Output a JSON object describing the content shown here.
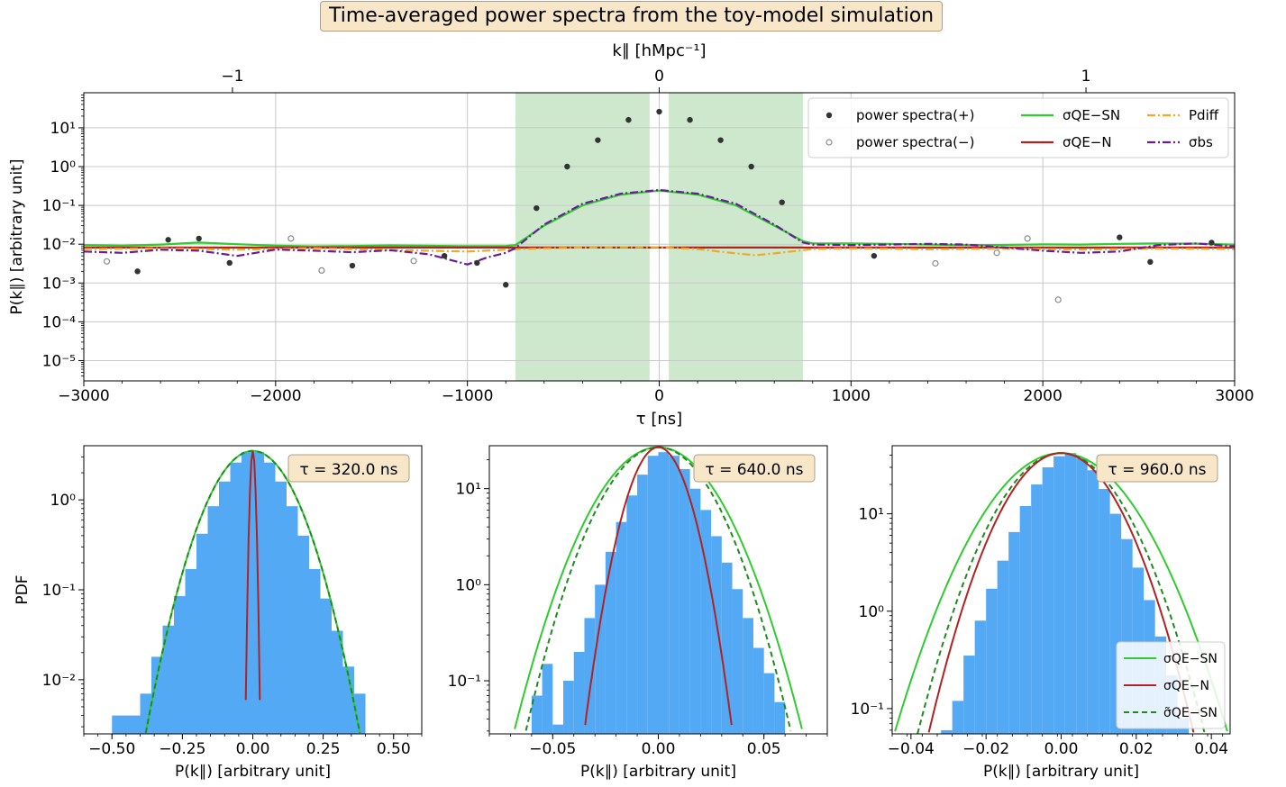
{
  "title": "Time-averaged power spectra from the toy-model simulation",
  "colors": {
    "ps_plus": "#333333",
    "ps_minus": "#8a8a8a",
    "sigma_qe_sn": "#2ecc2e",
    "sigma_qe_n": "#b22222",
    "p_diff": "#f5a623",
    "sigma_bs": "#6a1b9a",
    "sigma_qe_sn_tilde": "#1f8a1f",
    "histogram": "#53a9f4",
    "shade": "#cde8cd",
    "label_box": "#f8e6c8"
  },
  "chart_data": [
    {
      "type": "scatter",
      "panel": "top",
      "xlabel": "τ [ns]",
      "xlabel_top": "k∥ [hMpc⁻¹]",
      "ylabel": "P(k∥) [arbitrary unit]",
      "xlim": [
        -3000,
        3000
      ],
      "ylim": [
        3e-06,
        80
      ],
      "y_scale": "log",
      "grid": true,
      "legend_position": "top-right",
      "x_ticks": [
        -3000,
        -2000,
        -1000,
        0,
        1000,
        2000,
        3000
      ],
      "x_tick_labels": [
        "−3000",
        "−2000",
        "−1000",
        "0",
        "1000",
        "2000",
        "3000"
      ],
      "top_ticks": [
        -2225,
        0,
        2225
      ],
      "top_tick_labels": [
        "−1",
        "0",
        "1"
      ],
      "y_ticks": [
        1e-05,
        0.0001,
        0.001,
        0.01,
        0.1,
        1,
        10
      ],
      "y_tick_labels": [
        "10⁻⁵",
        "10⁻⁴",
        "10⁻³",
        "10⁻²",
        "10⁻¹",
        "10⁰",
        "10¹"
      ],
      "shaded_regions": [
        [
          -750,
          -50
        ],
        [
          50,
          750
        ]
      ],
      "legend": [
        {
          "key": "ps_plus",
          "label": "power spectra(+)"
        },
        {
          "key": "ps_minus",
          "label": "power spectra(−)"
        },
        {
          "key": "sigma_qe_sn",
          "label": "σQE−SN"
        },
        {
          "key": "sigma_qe_n",
          "label": "σQE−N"
        },
        {
          "key": "p_diff",
          "label": "Pdiff"
        },
        {
          "key": "sigma_bs",
          "label": "σbs"
        }
      ],
      "points_plus": [
        [
          -2720,
          0.002
        ],
        [
          -2560,
          0.013
        ],
        [
          -2400,
          0.014
        ],
        [
          -2240,
          0.0033
        ],
        [
          -1600,
          0.0028
        ],
        [
          -1120,
          0.005
        ],
        [
          -950,
          0.0033
        ],
        [
          -800,
          0.0009
        ],
        [
          -640,
          0.085
        ],
        [
          -480,
          1.0
        ],
        [
          -320,
          4.8
        ],
        [
          -160,
          16.0
        ],
        [
          0,
          26.0
        ],
        [
          160,
          16.0
        ],
        [
          320,
          4.8
        ],
        [
          480,
          1.0
        ],
        [
          640,
          0.12
        ],
        [
          1120,
          0.005
        ],
        [
          2400,
          0.015
        ],
        [
          2560,
          0.0035
        ],
        [
          2880,
          0.011
        ]
      ],
      "points_minus": [
        [
          -2880,
          0.0036
        ],
        [
          -1920,
          0.014
        ],
        [
          -1760,
          0.0021
        ],
        [
          -1280,
          0.0037
        ],
        [
          1440,
          0.0032
        ],
        [
          1760,
          0.006
        ],
        [
          1920,
          0.014
        ],
        [
          2080,
          0.00037
        ]
      ],
      "series": [
        {
          "key": "sigma_qe_sn",
          "style": "solid",
          "x": [
            -3000,
            -2800,
            -2600,
            -2400,
            -2200,
            -2000,
            -1800,
            -1600,
            -1400,
            -1200,
            -1000,
            -800,
            -750,
            -600,
            -400,
            -200,
            0,
            200,
            400,
            600,
            750,
            800,
            1000,
            1200,
            1400,
            1600,
            1800,
            2000,
            2200,
            2400,
            2600,
            2800,
            3000
          ],
          "y": [
            0.0095,
            0.0092,
            0.0098,
            0.011,
            0.01,
            0.0092,
            0.0088,
            0.009,
            0.0093,
            0.0091,
            0.0089,
            0.009,
            0.0095,
            0.03,
            0.1,
            0.19,
            0.24,
            0.19,
            0.1,
            0.03,
            0.012,
            0.0105,
            0.0105,
            0.0102,
            0.0098,
            0.0095,
            0.0096,
            0.0099,
            0.0098,
            0.0102,
            0.0105,
            0.0103,
            0.0098
          ]
        },
        {
          "key": "sigma_qe_n",
          "style": "solid",
          "x": [
            -3000,
            -1500,
            0,
            1500,
            3000
          ],
          "y": [
            0.0082,
            0.0082,
            0.0082,
            0.0082,
            0.0082
          ]
        },
        {
          "key": "p_diff",
          "style": "dashdot",
          "x": [
            -3000,
            -2600,
            -2200,
            -1800,
            -1400,
            -1000,
            -800,
            -600,
            -400,
            -200,
            0,
            200,
            400,
            500,
            600,
            800,
            1000,
            1400,
            1800,
            2200,
            2600,
            3000
          ],
          "y": [
            0.0075,
            0.0078,
            0.0072,
            0.0079,
            0.0071,
            0.0065,
            0.0072,
            0.0078,
            0.0082,
            0.0083,
            0.0083,
            0.0075,
            0.0058,
            0.0052,
            0.0058,
            0.0075,
            0.0078,
            0.0074,
            0.0077,
            0.0073,
            0.0077,
            0.0075
          ]
        },
        {
          "key": "sigma_bs",
          "style": "dashdot",
          "x": [
            -3000,
            -2800,
            -2600,
            -2400,
            -2200,
            -2000,
            -1800,
            -1600,
            -1400,
            -1200,
            -1000,
            -900,
            -800,
            -750,
            -600,
            -400,
            -200,
            0,
            200,
            400,
            600,
            750,
            800,
            1000,
            1200,
            1400,
            1600,
            1800,
            2000,
            2200,
            2400,
            2600,
            2800,
            3000
          ],
          "y": [
            0.0065,
            0.006,
            0.0072,
            0.0068,
            0.005,
            0.0073,
            0.0068,
            0.0062,
            0.007,
            0.0055,
            0.003,
            0.0045,
            0.006,
            0.008,
            0.032,
            0.11,
            0.2,
            0.25,
            0.2,
            0.11,
            0.032,
            0.011,
            0.0098,
            0.0095,
            0.0098,
            0.0102,
            0.0098,
            0.0082,
            0.0068,
            0.006,
            0.0065,
            0.0095,
            0.0105,
            0.0088
          ]
        }
      ]
    },
    {
      "type": "bar",
      "panel": "bottom-left",
      "annotation": "τ = 320.0 ns",
      "xlabel": "P(k∥) [arbitrary unit]",
      "ylabel": "PDF",
      "xlim": [
        -0.6,
        0.6
      ],
      "ylim": [
        0.0025,
        4
      ],
      "y_scale": "log",
      "x_ticks": [
        -0.5,
        -0.25,
        0.0,
        0.25,
        0.5
      ],
      "x_tick_labels": [
        "−0.50",
        "−0.25",
        "0.00",
        "0.25",
        "0.50"
      ],
      "y_ticks": [
        0.01,
        0.1,
        1
      ],
      "y_tick_labels": [
        "10⁻²",
        "10⁻¹",
        "10⁰"
      ],
      "bin_edges": [
        -0.5,
        -0.4,
        -0.36,
        -0.32,
        -0.28,
        -0.24,
        -0.2,
        -0.16,
        -0.12,
        -0.08,
        -0.04,
        0.0,
        0.04,
        0.08,
        0.12,
        0.16,
        0.2,
        0.24,
        0.28,
        0.32,
        0.36,
        0.4
      ],
      "counts": [
        0.004,
        0.007,
        0.018,
        0.04,
        0.085,
        0.17,
        0.42,
        0.85,
        1.6,
        2.6,
        3.4,
        3.4,
        2.6,
        1.6,
        0.85,
        0.4,
        0.17,
        0.08,
        0.035,
        0.014,
        0.007
      ],
      "gaussians": [
        {
          "key": "sigma_qe_sn",
          "style": "solid",
          "sigma": 0.1,
          "peak": 3.5
        },
        {
          "key": "sigma_qe_sn_tilde",
          "style": "dashed",
          "sigma": 0.1,
          "peak": 3.5
        },
        {
          "key": "sigma_qe_n",
          "style": "solid",
          "sigma": 0.007,
          "peak": 3.5
        }
      ]
    },
    {
      "type": "bar",
      "panel": "bottom-middle",
      "annotation": "τ = 640.0 ns",
      "xlabel": "P(k∥) [arbitrary unit]",
      "xlim": [
        -0.08,
        0.08
      ],
      "ylim": [
        0.028,
        28
      ],
      "y_scale": "log",
      "x_ticks": [
        -0.05,
        0.0,
        0.05
      ],
      "x_tick_labels": [
        "−0.05",
        "0.00",
        "0.05"
      ],
      "y_ticks": [
        0.1,
        1,
        10
      ],
      "y_tick_labels": [
        "10⁻¹",
        "10⁰",
        "10¹"
      ],
      "bin_edges": [
        -0.06,
        -0.055,
        -0.05,
        -0.045,
        -0.04,
        -0.035,
        -0.03,
        -0.025,
        -0.02,
        -0.015,
        -0.01,
        -0.005,
        0.0,
        0.005,
        0.01,
        0.015,
        0.02,
        0.025,
        0.03,
        0.035,
        0.04,
        0.045,
        0.05,
        0.055,
        0.06
      ],
      "counts": [
        0.07,
        0.15,
        0.035,
        0.1,
        0.2,
        0.45,
        1.0,
        2.2,
        4.5,
        8.5,
        14.0,
        22.0,
        24.0,
        22.0,
        16.0,
        10.0,
        6.0,
        3.2,
        1.7,
        0.9,
        0.45,
        0.22,
        0.12,
        0.06
      ],
      "gaussians": [
        {
          "key": "sigma_qe_sn",
          "style": "solid",
          "sigma": 0.0185,
          "peak": 27
        },
        {
          "key": "sigma_qe_sn_tilde",
          "style": "dashed",
          "sigma": 0.017,
          "peak": 27
        },
        {
          "key": "sigma_qe_n",
          "style": "solid",
          "sigma": 0.0095,
          "peak": 27
        }
      ]
    },
    {
      "type": "bar",
      "panel": "bottom-right",
      "annotation": "τ = 960.0 ns",
      "xlabel": "P(k∥) [arbitrary unit]",
      "xlim": [
        -0.045,
        0.045
      ],
      "ylim": [
        0.055,
        50
      ],
      "y_scale": "log",
      "x_ticks": [
        -0.04,
        -0.02,
        0.0,
        0.02,
        0.04
      ],
      "x_tick_labels": [
        "−0.04",
        "−0.02",
        "0.00",
        "0.02",
        "0.04"
      ],
      "y_ticks": [
        0.1,
        1,
        10
      ],
      "y_tick_labels": [
        "10⁻¹",
        "10⁰",
        "10¹"
      ],
      "legend_position": "bottom-right",
      "legend": [
        {
          "key": "sigma_qe_sn",
          "label": "σQE−SN"
        },
        {
          "key": "sigma_qe_n",
          "label": "σQE−N"
        },
        {
          "key": "sigma_qe_sn_tilde",
          "label": "σ̃QE−SN"
        }
      ],
      "bin_edges": [
        -0.032,
        -0.029,
        -0.026,
        -0.023,
        -0.02,
        -0.017,
        -0.014,
        -0.011,
        -0.008,
        -0.005,
        -0.002,
        0.001,
        0.004,
        0.007,
        0.01,
        0.013,
        0.016,
        0.019,
        0.022,
        0.025,
        0.028,
        0.031,
        0.034
      ],
      "counts": [
        0.06,
        0.12,
        0.35,
        0.8,
        1.7,
        3.3,
        6.5,
        12.0,
        20.0,
        30.0,
        39.0,
        42.0,
        37.0,
        28.0,
        18.0,
        10.0,
        5.5,
        2.8,
        1.3,
        0.55,
        0.22,
        0.08
      ],
      "gaussians": [
        {
          "key": "sigma_qe_sn",
          "style": "solid",
          "sigma": 0.0122,
          "peak": 42
        },
        {
          "key": "sigma_qe_sn_tilde",
          "style": "dashed",
          "sigma": 0.0105,
          "peak": 42
        },
        {
          "key": "sigma_qe_n",
          "style": "solid",
          "sigma": 0.0097,
          "peak": 42
        }
      ]
    }
  ]
}
